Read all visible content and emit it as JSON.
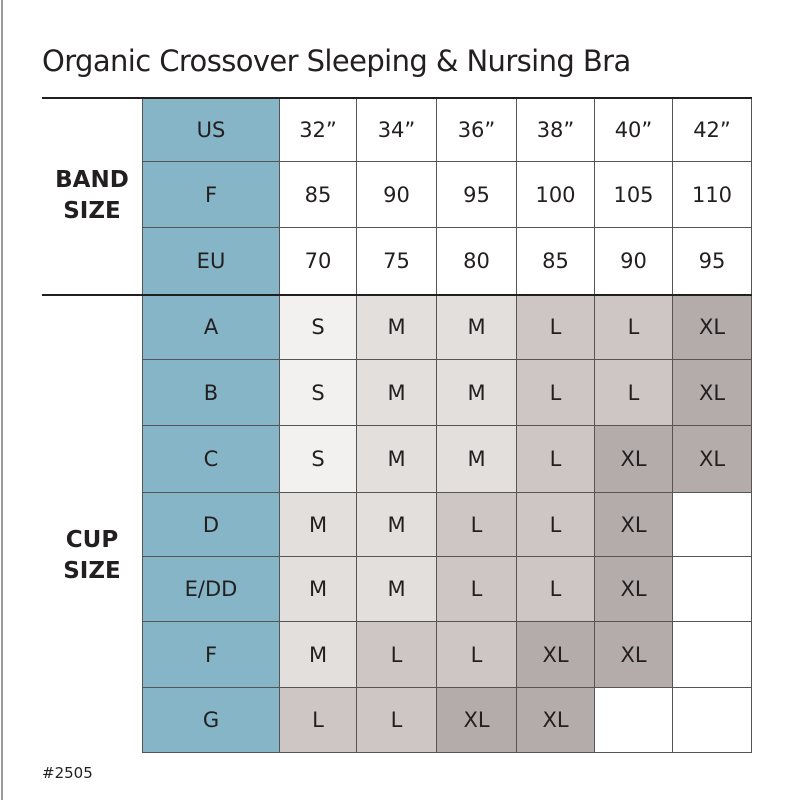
{
  "title": "Organic Crossover Sleeping & Nursing Bra",
  "footer": "#2505",
  "colors": {
    "label_column": "#85b5c6",
    "S": "#f3f1f0",
    "M": "#e3dfdd",
    "L": "#cdc6c4",
    "XL": "#b3acaa",
    "empty": "#ffffff"
  },
  "band_group": {
    "line1": "BAND",
    "line2": "SIZE"
  },
  "cup_group": {
    "line1": "CUP",
    "line2": "SIZE"
  },
  "band_rows": [
    {
      "label": "US",
      "values": [
        "32”",
        "34”",
        "36”",
        "38”",
        "40”",
        "42”"
      ]
    },
    {
      "label": "F",
      "values": [
        "85",
        "90",
        "95",
        "100",
        "105",
        "110"
      ]
    },
    {
      "label": "EU",
      "values": [
        "70",
        "75",
        "80",
        "85",
        "90",
        "95"
      ]
    }
  ],
  "cup_rows": [
    {
      "label": "A",
      "values": [
        "S",
        "M",
        "M",
        "L",
        "L",
        "XL"
      ]
    },
    {
      "label": "B",
      "values": [
        "S",
        "M",
        "M",
        "L",
        "L",
        "XL"
      ]
    },
    {
      "label": "C",
      "values": [
        "S",
        "M",
        "M",
        "L",
        "XL",
        "XL"
      ]
    },
    {
      "label": "D",
      "values": [
        "M",
        "M",
        "L",
        "L",
        "XL",
        ""
      ]
    },
    {
      "label": "E/DD",
      "values": [
        "M",
        "M",
        "L",
        "L",
        "XL",
        ""
      ]
    },
    {
      "label": "F",
      "values": [
        "M",
        "L",
        "L",
        "XL",
        "XL",
        ""
      ]
    },
    {
      "label": "G",
      "values": [
        "L",
        "L",
        "XL",
        "XL",
        "",
        ""
      ]
    }
  ]
}
